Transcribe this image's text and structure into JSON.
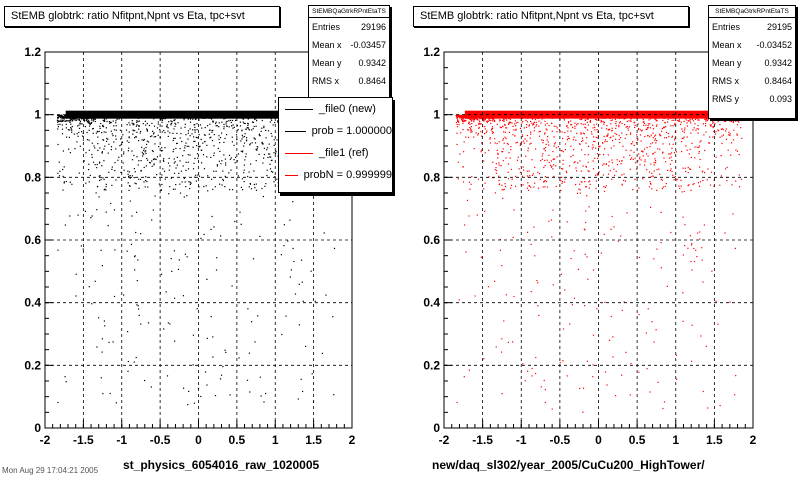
{
  "chart_data": [
    {
      "type": "scatter",
      "title": "StEMB globtrk: ratio Nfitpnt,Npnt vs Eta, tpc+svt",
      "xlabel": "st_physics_6054016_raw_1020005",
      "ylabel": "",
      "xlim": [
        -2,
        2
      ],
      "ylim": [
        0,
        1.2
      ],
      "x_ticks": [
        "-2",
        "-1.5",
        "-1",
        "-0.5",
        "0",
        "0.5",
        "1",
        "1.5",
        "2"
      ],
      "y_ticks": [
        "0",
        "0.2",
        "0.4",
        "0.6",
        "0.8",
        "1",
        "1.2"
      ],
      "grid": true,
      "color": "#000000",
      "x_range": [
        -1.85,
        1.85
      ],
      "band_y": 1.0,
      "stats": {
        "header": "StEMBQaGtrkRPntEtaTS",
        "rows": [
          {
            "label": "Entries",
            "value": "29196"
          },
          {
            "label": "Mean x",
            "value": "-0.03457"
          },
          {
            "label": "Mean y",
            "value": "0.9342"
          },
          {
            "label": "RMS x",
            "value": "0.8464"
          }
        ]
      },
      "legend": {
        "entries": [
          {
            "label": "_file0 (new)",
            "color": "#000000"
          },
          {
            "label": "prob = 1.000000",
            "color": "#000000"
          },
          {
            "label": "_file1 (ref)",
            "color": "#ff0000"
          },
          {
            "label": "probN = 0.999999",
            "color": "#ff0000"
          }
        ]
      }
    },
    {
      "type": "scatter",
      "title": "StEMB globtrk: ratio Nfitpnt,Npnt vs Eta, tpc+svt",
      "xlabel": "new/daq_sl302/year_2005/CuCu200_HighTower/",
      "ylabel": "",
      "xlim": [
        -2,
        2
      ],
      "ylim": [
        0,
        1.2
      ],
      "x_ticks": [
        "-2",
        "-1.5",
        "-1",
        "-0.5",
        "0",
        "0.5",
        "1",
        "1.5",
        "2"
      ],
      "y_ticks": [
        "0",
        "0.2",
        "0.4",
        "0.6",
        "0.8",
        "1",
        "1.2"
      ],
      "grid": true,
      "color": "#ff0000",
      "x_range": [
        -1.85,
        1.85
      ],
      "band_y": 1.0,
      "stats": {
        "header": "StEMBQaGtrkRPntEtaTS",
        "rows": [
          {
            "label": "Entries",
            "value": "29195"
          },
          {
            "label": "Mean x",
            "value": "-0.03452"
          },
          {
            "label": "Mean y",
            "value": "0.9342"
          },
          {
            "label": "RMS x",
            "value": "0.8464"
          },
          {
            "label": "RMS y",
            "value": "0.093"
          }
        ]
      }
    }
  ],
  "footer": "Mon Aug 29 17:04:21 2005"
}
